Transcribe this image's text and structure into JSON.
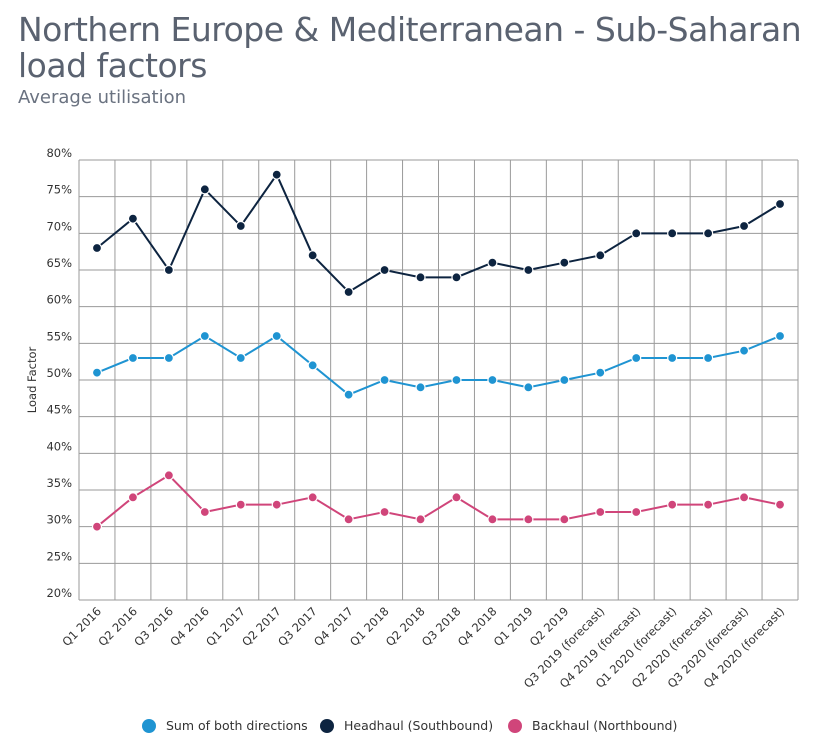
{
  "chart_data": {
    "type": "line",
    "title": "Northern Europe & Mediterranean - Sub-Saharan load factors",
    "subtitle": "Average utilisation",
    "ylabel": "Load Factor",
    "xlabel": "",
    "ylim": [
      20,
      80
    ],
    "yticks": [
      "20%",
      "25%",
      "30%",
      "35%",
      "40%",
      "45%",
      "50%",
      "55%",
      "60%",
      "65%",
      "70%",
      "75%",
      "80%"
    ],
    "grid": true,
    "legend_position": "bottom",
    "categories": [
      "Q1 2016",
      "Q2 2016",
      "Q3 2016",
      "Q4 2016",
      "Q1 2017",
      "Q2 2017",
      "Q3 2017",
      "Q4 2017",
      "Q1 2018",
      "Q2 2018",
      "Q3 2018",
      "Q4 2018",
      "Q1 2019",
      "Q2 2019",
      "Q3 2019 (forecast)",
      "Q4 2019 (forecast)",
      "Q1 2020 (forecast)",
      "Q2 2020 (forecast)",
      "Q3 2020 (forecast)",
      "Q4 2020 (forecast)"
    ],
    "series": [
      {
        "name": "Sum of both directions",
        "color": "#1f94d2",
        "values": [
          51,
          53,
          53,
          56,
          53,
          56,
          52,
          48,
          50,
          49,
          50,
          50,
          49,
          50,
          51,
          53,
          53,
          53,
          54,
          56
        ]
      },
      {
        "name": "Headhaul (Southbound)",
        "color": "#0d2440",
        "values": [
          68,
          72,
          65,
          76,
          71,
          78,
          67,
          62,
          65,
          64,
          64,
          66,
          65,
          66,
          67,
          70,
          70,
          70,
          71,
          74
        ]
      },
      {
        "name": "Backhaul (Northbound)",
        "color": "#d0457a",
        "values": [
          30,
          34,
          37,
          32,
          33,
          33,
          34,
          31,
          32,
          31,
          34,
          31,
          31,
          31,
          32,
          32,
          33,
          33,
          34,
          33
        ]
      }
    ]
  }
}
